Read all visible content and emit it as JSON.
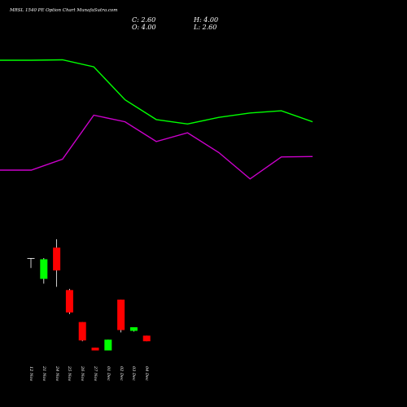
{
  "header": {
    "title": "MRSL 1540 PE Option  Chart MunafaSutra.com",
    "close_label": "C: 2.60",
    "high_label": "H: 4.00",
    "open_label": "O: 4.00",
    "low_label": "L: 2.60"
  },
  "chart_data": {
    "type": "candlestick",
    "categories": [
      "12 Nov",
      "21 Nov",
      "24 Nov",
      "25 Nov",
      "26 Nov",
      "27 Nov",
      "01 Dec",
      "02 Dec",
      "03 Dec",
      "04 Dec"
    ],
    "candles": [
      {
        "open": 23.4,
        "high": 23.4,
        "low": 20.9,
        "close": 23.4
      },
      {
        "open": 18.2,
        "high": 23.4,
        "low": 17.0,
        "close": 23.1
      },
      {
        "open": 26.0,
        "high": 28.1,
        "low": 16.2,
        "close": 20.3
      },
      {
        "open": 15.4,
        "high": 15.7,
        "low": 9.4,
        "close": 9.8
      },
      {
        "open": 7.4,
        "high": 7.4,
        "low": 2.6,
        "close": 2.8
      },
      {
        "open": 1.0,
        "high": 1.0,
        "low": 0.3,
        "close": 0.3
      },
      {
        "open": 0.3,
        "high": 3.0,
        "low": 0.3,
        "close": 3.0
      },
      {
        "open": 13.0,
        "high": 13.0,
        "low": 4.8,
        "close": 5.4
      },
      {
        "open": 5.2,
        "high": 6.1,
        "low": 5.0,
        "close": 6.1
      },
      {
        "open": 4.0,
        "high": 4.0,
        "low": 2.6,
        "close": 2.6
      }
    ],
    "up_color": "#00ff00",
    "down_color": "#ff0000",
    "price_range": [
      0,
      35
    ],
    "indicator_lines": [
      {
        "color": "#00ff00",
        "values": [
          80,
          80,
          80.2,
          77,
          62,
          53,
          51,
          54,
          56,
          57,
          52
        ]
      },
      {
        "color": "#cc00cc",
        "values": [
          30,
          30,
          35,
          55,
          52,
          43,
          47,
          38,
          26,
          36,
          36.2
        ]
      }
    ],
    "indicator_range": [
      0,
      100
    ],
    "grid": false,
    "legend": "none"
  }
}
